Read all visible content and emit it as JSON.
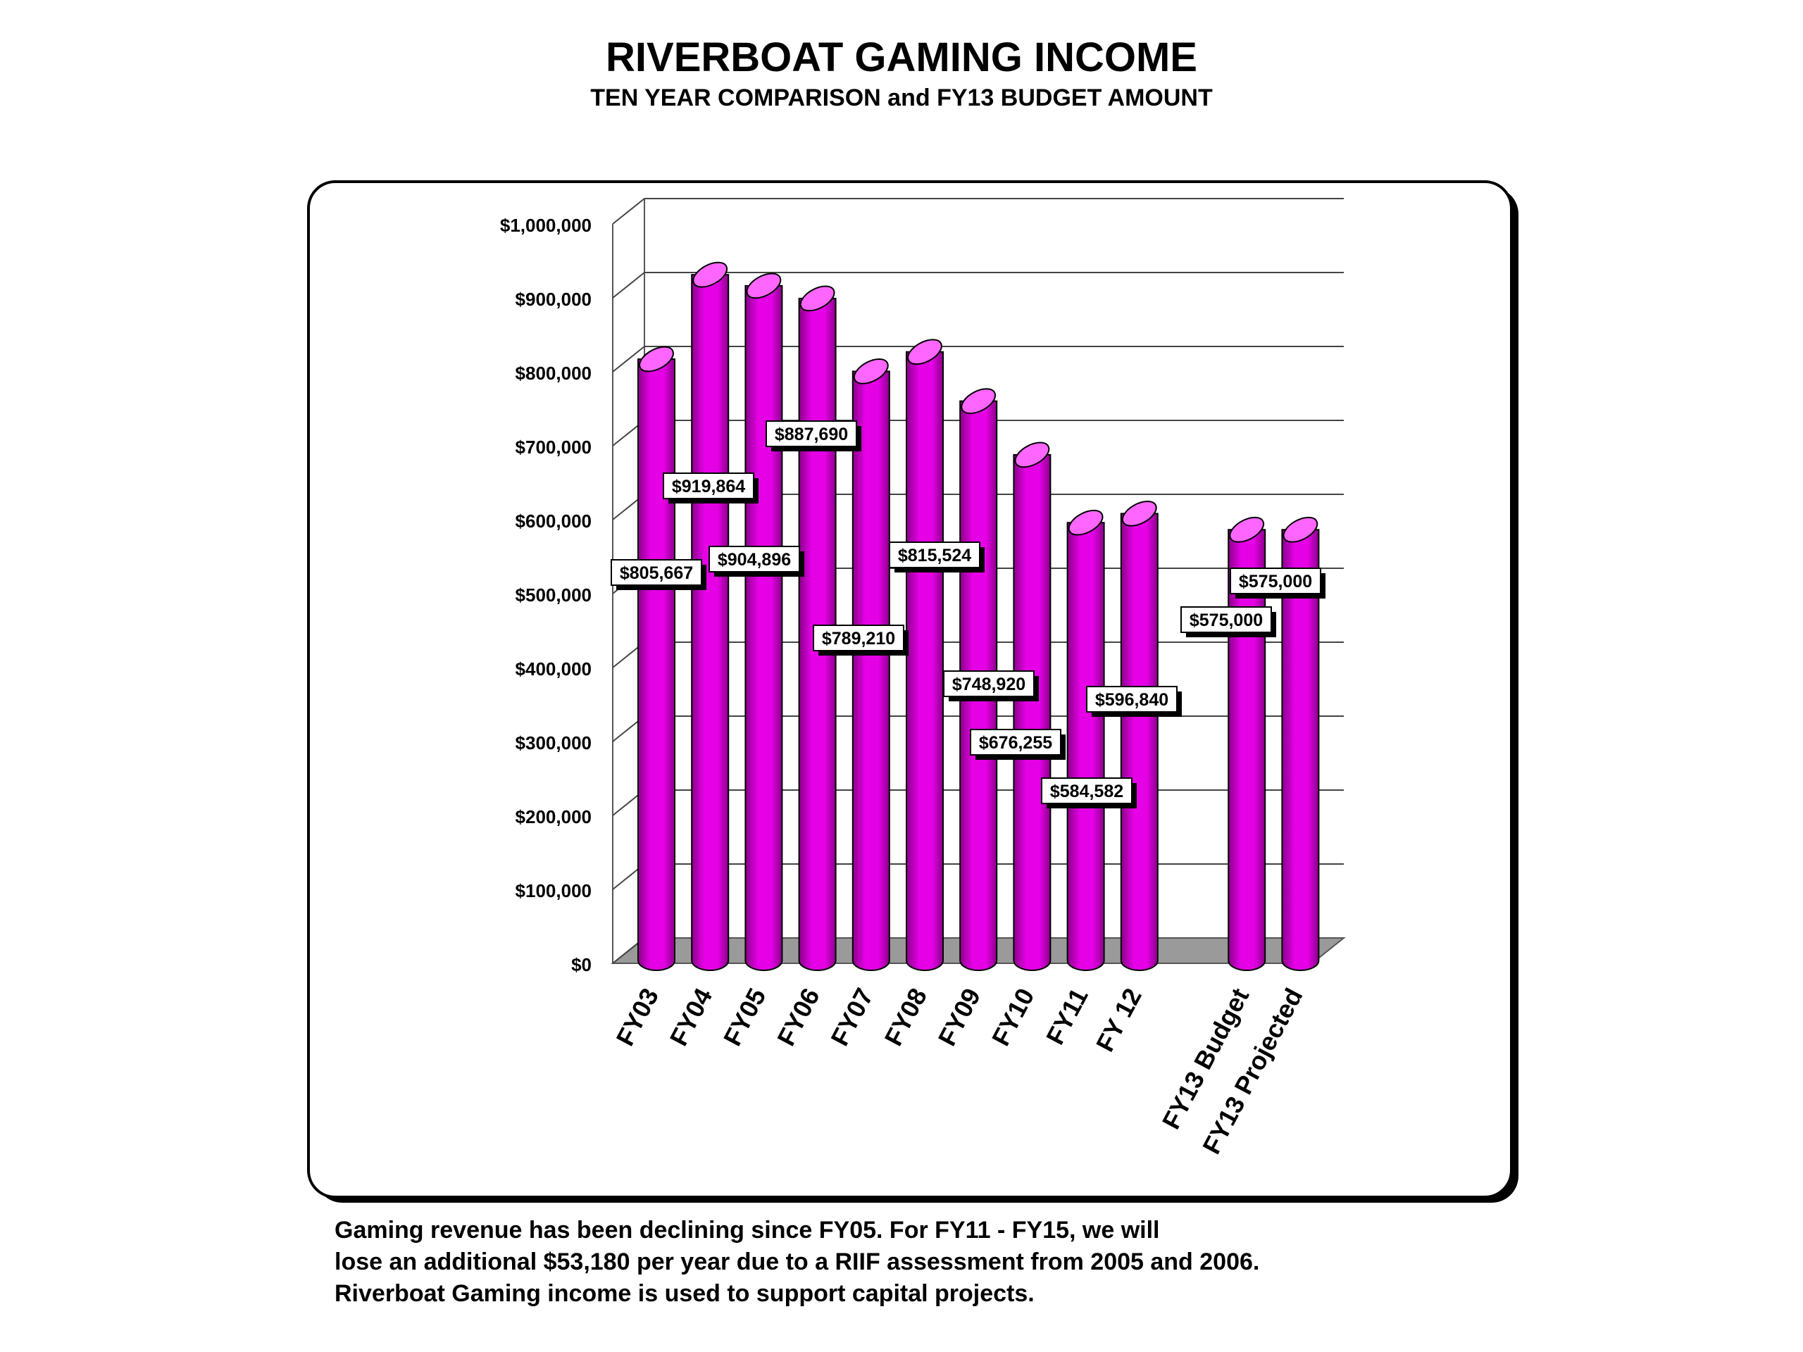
{
  "title": "RIVERBOAT GAMING INCOME",
  "subtitle": "TEN YEAR COMPARISON and FY13 BUDGET AMOUNT",
  "notes": [
    "Gaming revenue has been declining since FY05.  For FY11 - FY15, we will",
    "lose an additional $53,180 per year due to a RIIF assessment from 2005 and 2006.",
    "Riverboat Gaming income is used to support capital projects."
  ],
  "colors": {
    "bar": "#e600e6",
    "bar_dark": "#8a008a",
    "bar_top": "#ff66ff",
    "floor": "#9a9a9a"
  },
  "chart_data": {
    "type": "bar",
    "style": "3d-cylinder",
    "categories": [
      "FY03",
      "FY04",
      "FY05",
      "FY06",
      "FY07",
      "FY08",
      "FY09",
      "FY10",
      "FY11",
      "FY 12",
      "",
      "FY13 Budget",
      "FY13 Projected"
    ],
    "values": [
      805667,
      919864,
      904896,
      887690,
      789210,
      815524,
      748920,
      676255,
      584582,
      596840,
      null,
      575000,
      575000
    ],
    "data_labels": [
      "$805,667",
      "$919,864",
      "$904,896",
      "$887,690",
      "$789,210",
      "$815,524",
      "$748,920",
      "$676,255",
      "$584,582",
      "$596,840",
      "",
      "$575,000",
      "$575,000"
    ],
    "ylim": [
      0,
      1000000
    ],
    "yticks": [
      0,
      100000,
      200000,
      300000,
      400000,
      500000,
      600000,
      700000,
      800000,
      900000,
      1000000
    ],
    "ytick_labels": [
      "$0",
      "$100,000",
      "$200,000",
      "$300,000",
      "$400,000",
      "$500,000",
      "$600,000",
      "$700,000",
      "$800,000",
      "$900,000",
      "$1,000,000"
    ],
    "grid": true,
    "legend": "none"
  }
}
